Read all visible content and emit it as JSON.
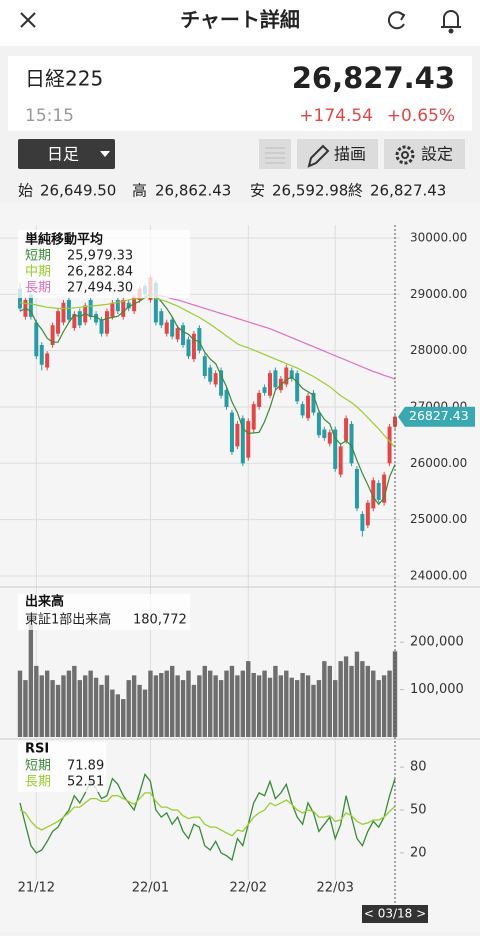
{
  "header": {
    "title": "チャート詳細"
  },
  "quote": {
    "name": "日経225",
    "time": "15:15",
    "price": "26,827.43",
    "change": "+174.54",
    "change_pct": "+0.65%"
  },
  "controls": {
    "period": "日足",
    "draw": "描画",
    "settings": "設定"
  },
  "ohlc": [
    {
      "label": "始",
      "value": "26,649.50"
    },
    {
      "label": "高",
      "value": "26,862.43"
    },
    {
      "label": "安",
      "value": "26,592.98"
    },
    {
      "label": "終",
      "value": "26,827.43"
    }
  ],
  "chart_data": [
    {
      "type": "candlestick",
      "title": "単純移動平均",
      "categories": [
        null,
        null,
        null,
        "21/12",
        null,
        null,
        null,
        null,
        null,
        null,
        null,
        null,
        null,
        null,
        null,
        null,
        null,
        null,
        null,
        null,
        null,
        null,
        null,
        null,
        "22/01",
        null,
        null,
        null,
        null,
        null,
        null,
        null,
        null,
        null,
        null,
        null,
        null,
        null,
        null,
        null,
        null,
        null,
        "22/02",
        null,
        null,
        null,
        null,
        null,
        null,
        null,
        null,
        null,
        null,
        null,
        null,
        null,
        null,
        null,
        "22/03",
        null,
        null,
        null,
        null,
        null,
        null,
        null,
        null,
        null,
        null,
        null
      ],
      "cursor_label": "< 03/18 >",
      "open": [
        29100,
        28600,
        29000,
        28500,
        28100,
        27700,
        28100,
        28300,
        28500,
        28900,
        28400,
        28700,
        28500,
        28900,
        28650,
        28550,
        28300,
        28600,
        28900,
        28600,
        28850,
        28700,
        28900,
        29150,
        28900,
        29200,
        28700,
        28300,
        28550,
        28200,
        28450,
        28200,
        27850,
        28400,
        27900,
        27700,
        27400,
        27650,
        27300,
        26900,
        26300,
        26800,
        26100,
        26600,
        27000,
        27350,
        27200,
        27650,
        27300,
        27400,
        27650,
        27600,
        27050,
        26800,
        27250,
        26900,
        26600,
        26350,
        26600,
        25800,
        26400,
        26700,
        25900,
        25100,
        24900,
        25200,
        25650,
        25300,
        26000,
        26649.5
      ],
      "high": [
        29200,
        28950,
        29050,
        28550,
        28150,
        27990,
        28500,
        28750,
        28900,
        28950,
        28700,
        28750,
        28850,
        28950,
        28700,
        28600,
        28750,
        28900,
        28950,
        28950,
        28900,
        29000,
        29150,
        29200,
        29350,
        29250,
        28750,
        28550,
        28600,
        28450,
        28500,
        28250,
        28350,
        28450,
        27950,
        27750,
        27650,
        27700,
        27350,
        26950,
        26750,
        26850,
        26800,
        27100,
        27300,
        27400,
        27650,
        27700,
        27550,
        27750,
        27700,
        27650,
        27100,
        27250,
        27300,
        26950,
        26650,
        26600,
        26650,
        26350,
        26850,
        26750,
        25950,
        25150,
        25350,
        25750,
        25700,
        25850,
        26700,
        26862.43
      ],
      "low": [
        28700,
        28550,
        28550,
        27850,
        27650,
        27650,
        28050,
        28250,
        28450,
        28500,
        28350,
        28400,
        28450,
        28550,
        28450,
        28250,
        28250,
        28550,
        28650,
        28550,
        28700,
        28650,
        28850,
        28950,
        28850,
        28450,
        28400,
        28250,
        28200,
        28150,
        28050,
        27850,
        27800,
        27950,
        27500,
        27400,
        27350,
        27150,
        26950,
        26150,
        26250,
        25950,
        26050,
        26550,
        26950,
        27200,
        27150,
        27300,
        27250,
        27350,
        27450,
        27050,
        26800,
        26750,
        26850,
        26450,
        26400,
        26300,
        25850,
        25750,
        26350,
        25950,
        25150,
        24700,
        24850,
        25150,
        25300,
        25250,
        25950,
        26592.98
      ],
      "close": [
        28750,
        28900,
        28600,
        27900,
        27750,
        27950,
        28450,
        28700,
        28850,
        28550,
        28650,
        28450,
        28800,
        28600,
        28500,
        28300,
        28700,
        28850,
        28700,
        28900,
        28750,
        28950,
        29100,
        29000,
        29300,
        28500,
        28450,
        28500,
        28250,
        28400,
        28100,
        27900,
        28300,
        28000,
        27550,
        27450,
        27600,
        27200,
        27000,
        26200,
        26700,
        26000,
        26750,
        27050,
        27250,
        27250,
        27600,
        27350,
        27500,
        27700,
        27500,
        27100,
        26850,
        27200,
        26900,
        26500,
        26450,
        26550,
        25900,
        26300,
        26800,
        26000,
        25200,
        24800,
        25300,
        25700,
        25350,
        25800,
        26650,
        26827.43
      ],
      "up_color": "#e04848",
      "down_color": "#2a9aa5",
      "series": [
        {
          "name": "短期",
          "legend_value": "25,979.33",
          "color": "#3a8a3a",
          "values": [
            28700,
            28750,
            28700,
            28500,
            28380,
            28220,
            28150,
            28150,
            28340,
            28500,
            28640,
            28600,
            28660,
            28610,
            28600,
            28540,
            28570,
            28590,
            28610,
            28690,
            28780,
            28830,
            28880,
            28940,
            29020,
            28970,
            28870,
            28750,
            28600,
            28420,
            28340,
            28290,
            28190,
            28160,
            27970,
            27850,
            27770,
            27560,
            27360,
            27090,
            26900,
            26620,
            26530,
            26540,
            26550,
            26740,
            26990,
            27300,
            27390,
            27480,
            27530,
            27440,
            27330,
            27270,
            27210,
            26930,
            26780,
            26700,
            26440,
            26340,
            26400,
            26310,
            26050,
            25820,
            25620,
            25400,
            25270,
            25390,
            25760,
            25979.33
          ]
        },
        {
          "name": "中期",
          "legend_value": "26,282.84",
          "color": "#9acd32",
          "values": [
            28850,
            28840,
            28830,
            28810,
            28790,
            28770,
            28760,
            28750,
            28750,
            28750,
            28760,
            28770,
            28780,
            28790,
            28800,
            28810,
            28820,
            28840,
            28860,
            28880,
            28900,
            28920,
            28930,
            28940,
            28950,
            28930,
            28900,
            28870,
            28830,
            28790,
            28740,
            28690,
            28640,
            28590,
            28530,
            28470,
            28400,
            28330,
            28260,
            28190,
            28120,
            28080,
            28050,
            28010,
            27970,
            27930,
            27890,
            27850,
            27810,
            27770,
            27730,
            27690,
            27640,
            27590,
            27540,
            27480,
            27420,
            27360,
            27280,
            27200,
            27140,
            27080,
            27000,
            26910,
            26810,
            26710,
            26610,
            26500,
            26390,
            26282.84
          ]
        },
        {
          "name": "長期",
          "legend_value": "27,494.30",
          "color": "#e070c0",
          "values": [
            null,
            null,
            null,
            null,
            null,
            null,
            null,
            null,
            null,
            null,
            null,
            null,
            null,
            null,
            null,
            null,
            null,
            null,
            null,
            null,
            null,
            null,
            null,
            null,
            29000,
            28990,
            28970,
            28950,
            28920,
            28900,
            28870,
            28840,
            28810,
            28780,
            28750,
            28720,
            28690,
            28660,
            28630,
            28600,
            28570,
            28540,
            28510,
            28480,
            28450,
            28420,
            28390,
            28350,
            28310,
            28270,
            28230,
            28190,
            28150,
            28110,
            28070,
            28030,
            27990,
            27950,
            27910,
            27870,
            27830,
            27790,
            27750,
            27710,
            27670,
            27630,
            27600,
            27560,
            27530,
            27494.3
          ]
        }
      ],
      "ylim": [
        23840,
        30230
      ],
      "yticks": [
        {
          "value": 24000,
          "label": "24000.00"
        },
        {
          "value": 25000,
          "label": "25000.00"
        },
        {
          "value": 26000,
          "label": "26000.00"
        },
        {
          "value": 27000,
          "label": "27000.00"
        },
        {
          "value": 28000,
          "label": "28000.00"
        },
        {
          "value": 29000,
          "label": "29000.00"
        },
        {
          "value": 30000,
          "label": "30000.00"
        }
      ],
      "price_tag": {
        "value": 26827.43,
        "label": "26827.43"
      },
      "grid": true
    },
    {
      "type": "bar",
      "title": "出来高",
      "subtitle": "東証1部出来高",
      "latest": "180,772",
      "color": "#6e6e6e",
      "values": [
        140000,
        120000,
        240000,
        150000,
        130000,
        140000,
        120000,
        110000,
        130000,
        140000,
        150000,
        120000,
        130000,
        140000,
        125000,
        110000,
        130000,
        100000,
        90000,
        80000,
        120000,
        130000,
        110000,
        100000,
        140000,
        130000,
        135000,
        140000,
        150000,
        130000,
        120000,
        140000,
        110000,
        130000,
        150000,
        140000,
        130000,
        120000,
        140000,
        150000,
        130000,
        140000,
        160000,
        135000,
        130000,
        140000,
        125000,
        150000,
        130000,
        140000,
        125000,
        120000,
        135000,
        130000,
        110000,
        120000,
        160000,
        150000,
        120000,
        160000,
        170000,
        150000,
        180000,
        160000,
        150000,
        140000,
        120000,
        130000,
        140000,
        180772
      ],
      "ylim": [
        0,
        310000
      ],
      "yticks": [
        {
          "value": 100000,
          "label": "100,000"
        },
        {
          "value": 200000,
          "label": "200,000"
        }
      ]
    },
    {
      "type": "line",
      "title": "RSI",
      "series": [
        {
          "name": "短期",
          "legend_value": "71.89",
          "color": "#3a8a3a",
          "values": [
            55,
            40,
            25,
            20,
            22,
            28,
            35,
            38,
            45,
            50,
            60,
            55,
            62,
            70,
            65,
            58,
            60,
            72,
            68,
            60,
            55,
            50,
            62,
            75,
            70,
            50,
            45,
            48,
            40,
            45,
            35,
            30,
            40,
            38,
            25,
            22,
            28,
            20,
            18,
            15,
            30,
            25,
            40,
            55,
            62,
            60,
            70,
            58,
            62,
            68,
            55,
            45,
            40,
            55,
            48,
            35,
            40,
            45,
            30,
            40,
            60,
            45,
            30,
            25,
            35,
            42,
            38,
            45,
            60,
            71.89
          ]
        },
        {
          "name": "長期",
          "legend_value": "52.51",
          "color": "#9acd32",
          "values": [
            50,
            48,
            42,
            38,
            36,
            38,
            40,
            42,
            45,
            48,
            52,
            52,
            55,
            58,
            58,
            56,
            56,
            60,
            60,
            58,
            56,
            54,
            58,
            62,
            62,
            56,
            52,
            52,
            50,
            50,
            46,
            44,
            45,
            45,
            40,
            38,
            38,
            36,
            34,
            32,
            36,
            35,
            40,
            45,
            48,
            50,
            55,
            53,
            55,
            57,
            54,
            50,
            48,
            50,
            49,
            45,
            45,
            46,
            42,
            43,
            48,
            46,
            42,
            40,
            41,
            43,
            43,
            45,
            49,
            52.51
          ]
        }
      ],
      "ylim": [
        1,
        99
      ],
      "yticks": [
        20,
        50,
        80
      ]
    }
  ]
}
